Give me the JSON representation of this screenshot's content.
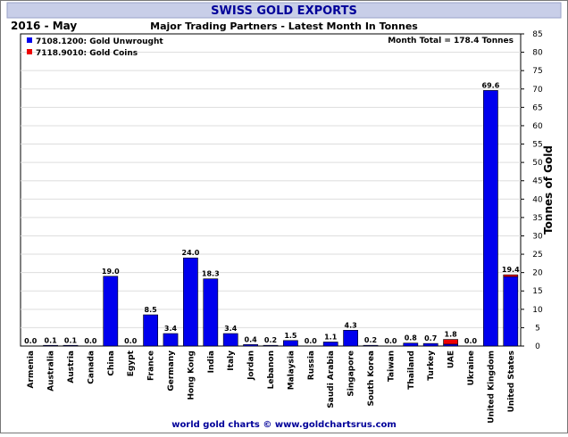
{
  "chart_data": {
    "type": "bar",
    "stacked": true,
    "title": "SWISS GOLD EXPORTS",
    "period": "2016 - May",
    "subtitle": "Major Trading Partners - Latest Month In Tonnes",
    "summary": "Month Total = 178.4 Tonnes",
    "footer": "world gold charts © www.goldchartsrus.com",
    "ylabel": "Tonnes of Gold",
    "ylim": [
      0,
      85
    ],
    "yticks": [
      0,
      5,
      10,
      15,
      20,
      25,
      30,
      35,
      40,
      45,
      50,
      55,
      60,
      65,
      70,
      75,
      80,
      85
    ],
    "grid": true,
    "legend_position": "top-left",
    "categories": [
      "Armenia",
      "Australia",
      "Austria",
      "Canada",
      "China",
      "Egypt",
      "France",
      "Germany",
      "Hong Kong",
      "India",
      "Italy",
      "Jordan",
      "Lebanon",
      "Malaysia",
      "Russia",
      "Saudi Arabia",
      "Singapore",
      "South Korea",
      "Taiwan",
      "Thailand",
      "Turkey",
      "UAE",
      "Ukraine",
      "United Kingdom",
      "United States"
    ],
    "totals": [
      "0.0",
      "0.1",
      "0.1",
      "0.0",
      "19.0",
      "0.0",
      "8.5",
      "3.4",
      "24.0",
      "18.3",
      "3.4",
      "0.4",
      "0.2",
      "1.5",
      "0.0",
      "1.1",
      "4.3",
      "0.2",
      "0.0",
      "0.8",
      "0.7",
      "1.8",
      "0.0",
      "69.6",
      "19.4"
    ],
    "series": [
      {
        "name": "7108.1200: Gold Unwrought",
        "color": "#0000ee",
        "values": [
          0.0,
          0.1,
          0.1,
          0.0,
          19.0,
          0.0,
          8.5,
          3.4,
          24.0,
          18.3,
          3.4,
          0.4,
          0.2,
          1.5,
          0.0,
          1.1,
          4.3,
          0.2,
          0.0,
          0.8,
          0.7,
          0.5,
          0.0,
          69.6,
          18.9
        ]
      },
      {
        "name": "7118.9010: Gold Coins",
        "color": "#ee0000",
        "values": [
          0,
          0,
          0,
          0,
          0,
          0,
          0,
          0,
          0,
          0,
          0,
          0,
          0,
          0,
          0,
          0,
          0,
          0,
          0,
          0,
          0,
          1.3,
          0,
          0,
          0.5
        ]
      }
    ]
  },
  "colors": {
    "title_bar": "#c8cee8",
    "title_text": "#000099",
    "frame_border": "#777777",
    "grid_line": "#dddddd",
    "footer_text": "#000099"
  }
}
